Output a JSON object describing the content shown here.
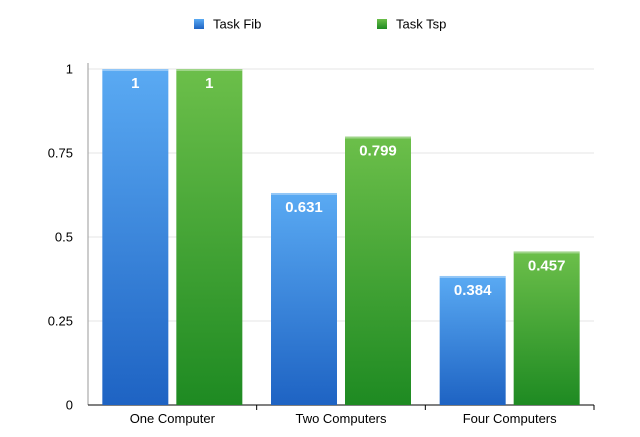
{
  "chart_data": {
    "type": "bar",
    "title": "",
    "xlabel": "",
    "ylabel": "",
    "categories": [
      "One Computer",
      "Two Computers",
      "Four Computers"
    ],
    "series": [
      {
        "name": "Task Fib",
        "values": [
          1,
          0.631,
          0.384
        ],
        "labels": [
          "1",
          "0.631",
          "0.384"
        ],
        "color_light": "#5AAAF3",
        "color_dark": "#1E63C3"
      },
      {
        "name": "Task Tsp",
        "values": [
          1,
          0.799,
          0.457
        ],
        "labels": [
          "1",
          "0.799",
          "0.457"
        ],
        "color_light": "#6CBF4A",
        "color_dark": "#1E8A22"
      }
    ],
    "yticks": [
      0,
      0.25,
      0.5,
      0.75,
      1
    ],
    "ytick_labels": [
      "0",
      "0.25",
      "0.5",
      "0.75",
      "1"
    ],
    "ylim": [
      0,
      1
    ],
    "grid": true,
    "legend": "top-center",
    "data_labels": "inside-top"
  }
}
